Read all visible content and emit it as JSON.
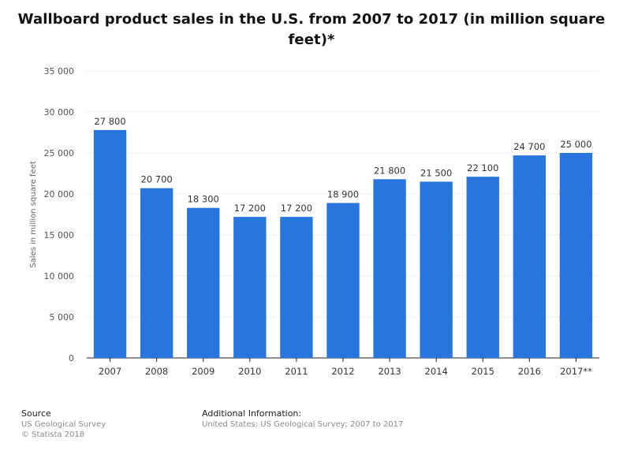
{
  "chart_data": {
    "type": "bar",
    "title": "Wallboard product sales in the U.S. from 2007 to 2017 (in million square feet)*",
    "xlabel": "",
    "ylabel": "Sales in million square feet",
    "categories": [
      "2007",
      "2008",
      "2009",
      "2010",
      "2011",
      "2012",
      "2013",
      "2014",
      "2015",
      "2016",
      "2017**"
    ],
    "values": [
      27800,
      20700,
      18300,
      17200,
      17200,
      18900,
      21800,
      21500,
      22100,
      24700,
      25000
    ],
    "data_labels": [
      "27 800",
      "20 700",
      "18 300",
      "17 200",
      "17 200",
      "18 900",
      "21 800",
      "21 500",
      "22 100",
      "24 700",
      "25 000"
    ],
    "yticks": [
      0,
      5000,
      10000,
      15000,
      20000,
      25000,
      30000,
      35000
    ],
    "ytick_labels": [
      "0",
      "5 000",
      "10 000",
      "15 000",
      "20 000",
      "25 000",
      "30 000",
      "35 000"
    ],
    "ylim": [
      0,
      35000
    ],
    "grid": true,
    "bar_color": "#2876dd"
  },
  "footer": {
    "source_heading": "Source",
    "source_lines": [
      "US Geological Survey",
      "© Statista 2018"
    ],
    "info_heading": "Additional Information:",
    "info_text": "United States; US Geological Survey; 2007 to 2017"
  }
}
